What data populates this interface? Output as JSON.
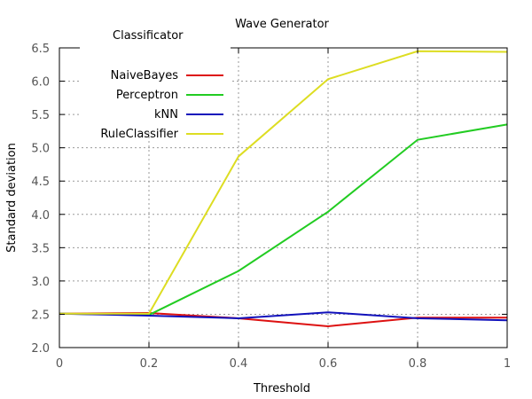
{
  "chart_data": {
    "type": "line",
    "title": "Wave Generator",
    "xlabel": "Threshold",
    "ylabel": "Standard deviation",
    "xlim": [
      0,
      1
    ],
    "ylim": [
      2.0,
      6.5
    ],
    "x_ticks": [
      "0",
      "0.2",
      "0.4",
      "0.6",
      "0.8",
      "1"
    ],
    "x_tick_values": [
      0,
      0.2,
      0.4,
      0.6,
      0.8,
      1
    ],
    "y_ticks": [
      "2.0",
      "2.5",
      "3.0",
      "3.5",
      "4.0",
      "4.5",
      "5.0",
      "5.5",
      "6.0",
      "6.5"
    ],
    "y_tick_values": [
      2.0,
      2.5,
      3.0,
      3.5,
      4.0,
      4.5,
      5.0,
      5.5,
      6.0,
      6.5
    ],
    "grid": true,
    "legend_title": "Classificator",
    "legend_position": "top-left",
    "x": [
      0,
      0.2,
      0.4,
      0.6,
      0.8,
      1
    ],
    "series": [
      {
        "name": "NaiveBayes",
        "color": "#dd1111",
        "values": [
          2.51,
          2.52,
          2.44,
          2.32,
          2.45,
          2.45
        ]
      },
      {
        "name": "Perceptron",
        "color": "#22cc22",
        "values": [
          2.51,
          2.49,
          3.15,
          4.04,
          5.12,
          5.35
        ]
      },
      {
        "name": "kNN",
        "color": "#1111bb",
        "values": [
          2.51,
          2.48,
          2.44,
          2.53,
          2.44,
          2.41
        ]
      },
      {
        "name": "RuleClassifier",
        "color": "#dddd22",
        "values": [
          2.51,
          2.51,
          4.87,
          6.03,
          6.45,
          6.44
        ]
      }
    ]
  }
}
